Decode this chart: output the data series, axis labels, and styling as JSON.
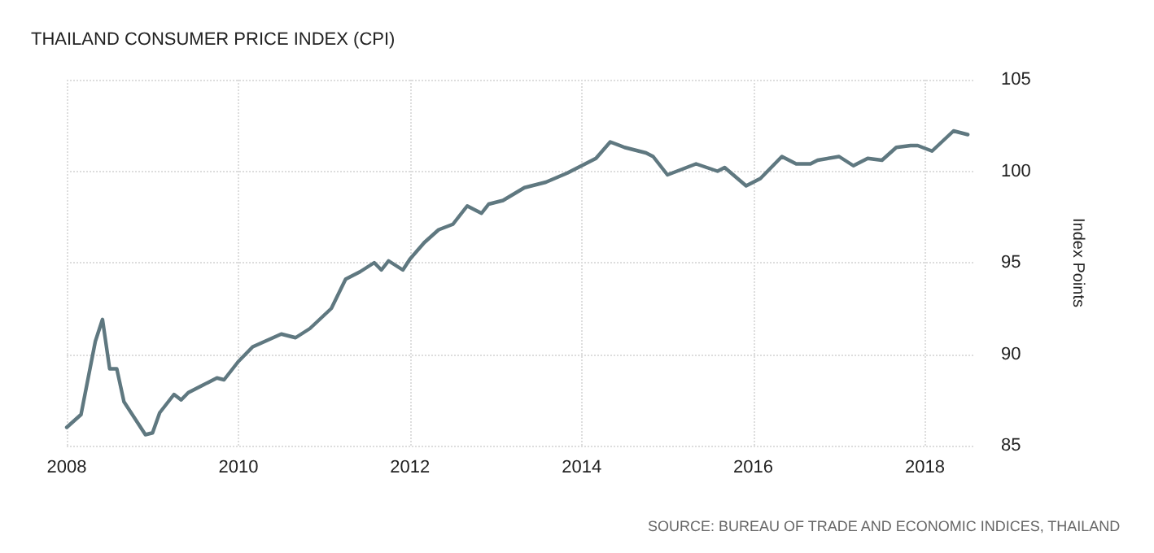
{
  "chart_data": {
    "type": "line",
    "title": "THAILAND CONSUMER PRICE INDEX (CPI)",
    "ylabel": "Index Points",
    "annotations": [
      "SOURCE: BUREAU OF TRADE AND ECONOMIC INDICES, THAILAND"
    ],
    "x": [
      "2008-01",
      "2008-03",
      "2008-04",
      "2008-05",
      "2008-06",
      "2008-07",
      "2008-08",
      "2008-09",
      "2008-12",
      "2009-01",
      "2009-02",
      "2009-04",
      "2009-05",
      "2009-06",
      "2009-08",
      "2009-10",
      "2009-11",
      "2010-01",
      "2010-03",
      "2010-07",
      "2010-09",
      "2010-11",
      "2011-02",
      "2011-04",
      "2011-06",
      "2011-08",
      "2011-09",
      "2011-10",
      "2011-12",
      "2012-01",
      "2012-03",
      "2012-05",
      "2012-07",
      "2012-09",
      "2012-11",
      "2012-12",
      "2013-02",
      "2013-05",
      "2013-08",
      "2013-11",
      "2014-03",
      "2014-05",
      "2014-07",
      "2014-10",
      "2014-11",
      "2015-01",
      "2015-03",
      "2015-05",
      "2015-08",
      "2015-09",
      "2015-12",
      "2016-02",
      "2016-05",
      "2016-07",
      "2016-09",
      "2016-10",
      "2017-01",
      "2017-03",
      "2017-05",
      "2017-07",
      "2017-09",
      "2017-11",
      "2017-12",
      "2018-02",
      "2018-05",
      "2018-07"
    ],
    "series": [
      {
        "color": "#5f7880",
        "values": [
          86.0,
          86.7,
          88.7,
          90.7,
          91.9,
          89.2,
          89.2,
          87.4,
          85.6,
          85.7,
          86.8,
          87.8,
          87.5,
          87.9,
          88.3,
          88.7,
          88.6,
          89.6,
          90.4,
          91.1,
          90.9,
          91.4,
          92.5,
          94.1,
          94.5,
          95.0,
          94.6,
          95.1,
          94.6,
          95.2,
          96.1,
          96.8,
          97.1,
          98.1,
          97.7,
          98.2,
          98.4,
          99.1,
          99.4,
          99.9,
          100.7,
          101.6,
          101.3,
          101.0,
          100.8,
          99.8,
          100.1,
          100.4,
          100.0,
          100.2,
          99.2,
          99.6,
          100.8,
          100.4,
          100.4,
          100.6,
          100.8,
          100.3,
          100.7,
          100.6,
          101.3,
          101.4,
          101.4,
          101.1,
          102.2,
          102.0
        ]
      }
    ],
    "xlim": [
      "2008-01",
      "2018-08"
    ],
    "xticks": [
      "2008",
      "2010",
      "2012",
      "2014",
      "2016",
      "2018"
    ],
    "ylim": [
      85,
      105
    ],
    "yticks": [
      85,
      90,
      95,
      100,
      105
    ],
    "grid": true,
    "marker": "none",
    "line_style": "solid"
  }
}
